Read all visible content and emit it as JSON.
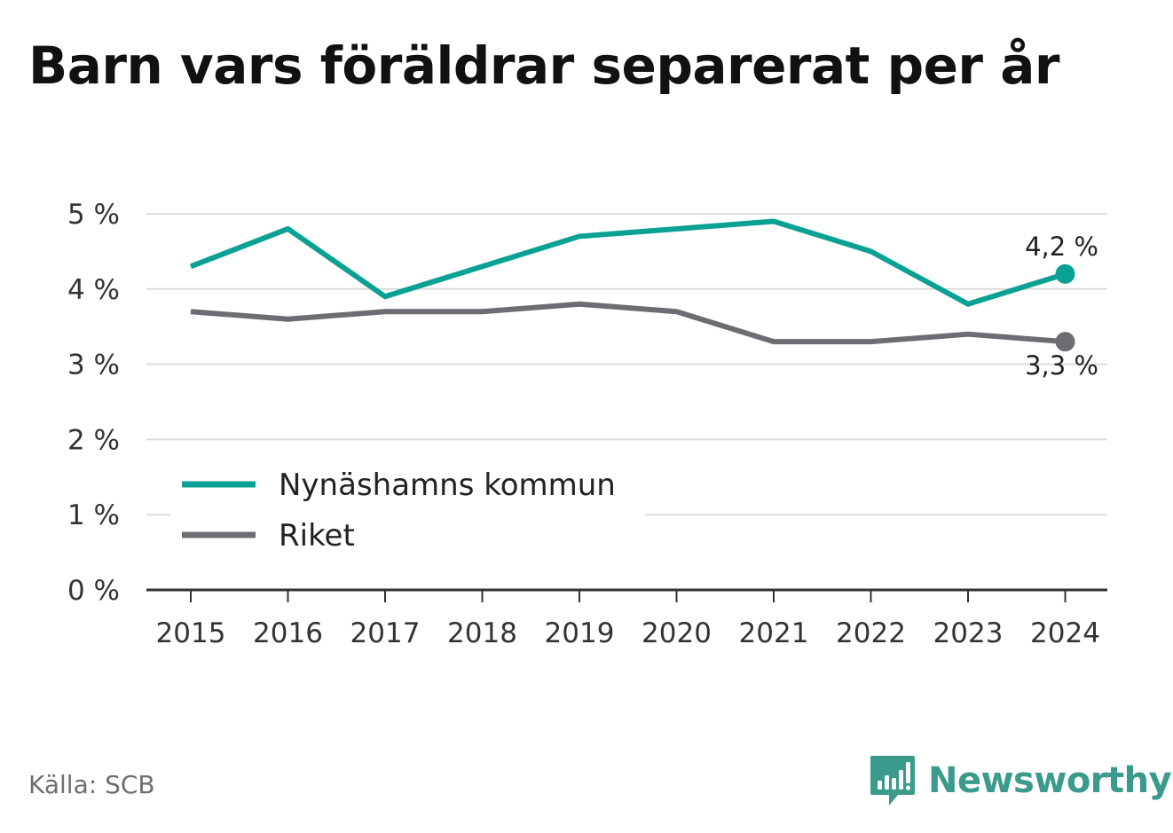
{
  "title": "Barn vars föräldrar separerat per år",
  "source": "Källa: SCB",
  "brand": {
    "name": "Newsworthy",
    "icon": "bar-chart-speech-bubble-icon",
    "color": "#3a9a8c"
  },
  "chart_data": {
    "type": "line",
    "x": [
      "2015",
      "2016",
      "2017",
      "2018",
      "2019",
      "2020",
      "2021",
      "2022",
      "2023",
      "2024"
    ],
    "series": [
      {
        "name": "Nynäshamns kommun",
        "color": "#0aa195",
        "values": [
          4.3,
          4.8,
          3.9,
          4.3,
          4.7,
          4.8,
          4.9,
          4.5,
          3.8,
          4.2
        ],
        "end_label": "4,2 %"
      },
      {
        "name": "Riket",
        "color": "#6c6c73",
        "values": [
          3.7,
          3.6,
          3.7,
          3.7,
          3.8,
          3.7,
          3.3,
          3.3,
          3.4,
          3.3
        ],
        "end_label": "3,3 %"
      }
    ],
    "yticks": [
      0,
      1,
      2,
      3,
      4,
      5
    ],
    "ytick_labels": [
      "0 %",
      "1 %",
      "2 %",
      "3 %",
      "4 %",
      "5 %"
    ],
    "ylim": [
      0,
      5
    ],
    "grid": true,
    "legend_position": "bottom-left"
  }
}
